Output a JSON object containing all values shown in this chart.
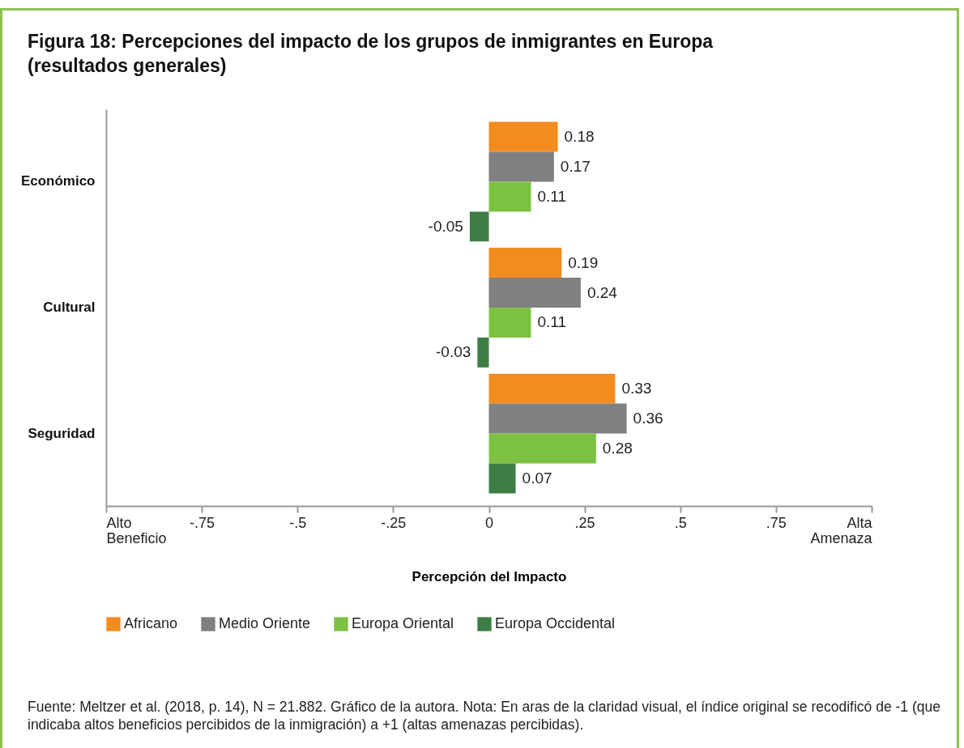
{
  "chart_data": {
    "type": "bar",
    "orientation": "horizontal",
    "title": "Figura 18: Percepciones del impacto de los grupos de inmigrantes en Europa (resultados generales)",
    "xlabel": "Percepción del Impacto",
    "categories": [
      "Económico",
      "Cultural",
      "Seguridad"
    ],
    "series": [
      {
        "name": "Africano",
        "color": "#f28c1e",
        "values": [
          0.18,
          0.19,
          0.33
        ]
      },
      {
        "name": "Medio Oriente",
        "color": "#808083",
        "values": [
          0.17,
          0.24,
          0.36
        ]
      },
      {
        "name": "Europa Oriental",
        "color": "#7dc142",
        "values": [
          0.11,
          0.11,
          0.28
        ]
      },
      {
        "name": "Europa Occidental",
        "color": "#3e7e45",
        "values": [
          -0.05,
          -0.03,
          0.07
        ]
      }
    ],
    "xlim": [
      -1,
      1
    ],
    "xticks": [
      {
        "value": -1,
        "label": "Alto\nBeneficio"
      },
      {
        "value": -0.75,
        "label": "-.75"
      },
      {
        "value": -0.5,
        "label": "-.5"
      },
      {
        "value": -0.25,
        "label": "-.25"
      },
      0,
      {
        "value": 0.25,
        "label": ".25"
      },
      {
        "value": 0.5,
        "label": ".5"
      },
      {
        "value": 0.75,
        "label": ".75"
      },
      {
        "value": 1,
        "label": "Alta\nAmenaza"
      }
    ],
    "data_labels": true,
    "legend": "bottom",
    "annotations": [
      "Fuente: Meltzer et al. (2018, p. 14), N = 21.882. Gráfico de la autora. Nota: En aras de la claridad visual, el índice original se recodificó de -1 (que indicaba altos beneficios percibidos de la inmigración) a +1 (altas amenazas percibidas)."
    ]
  }
}
